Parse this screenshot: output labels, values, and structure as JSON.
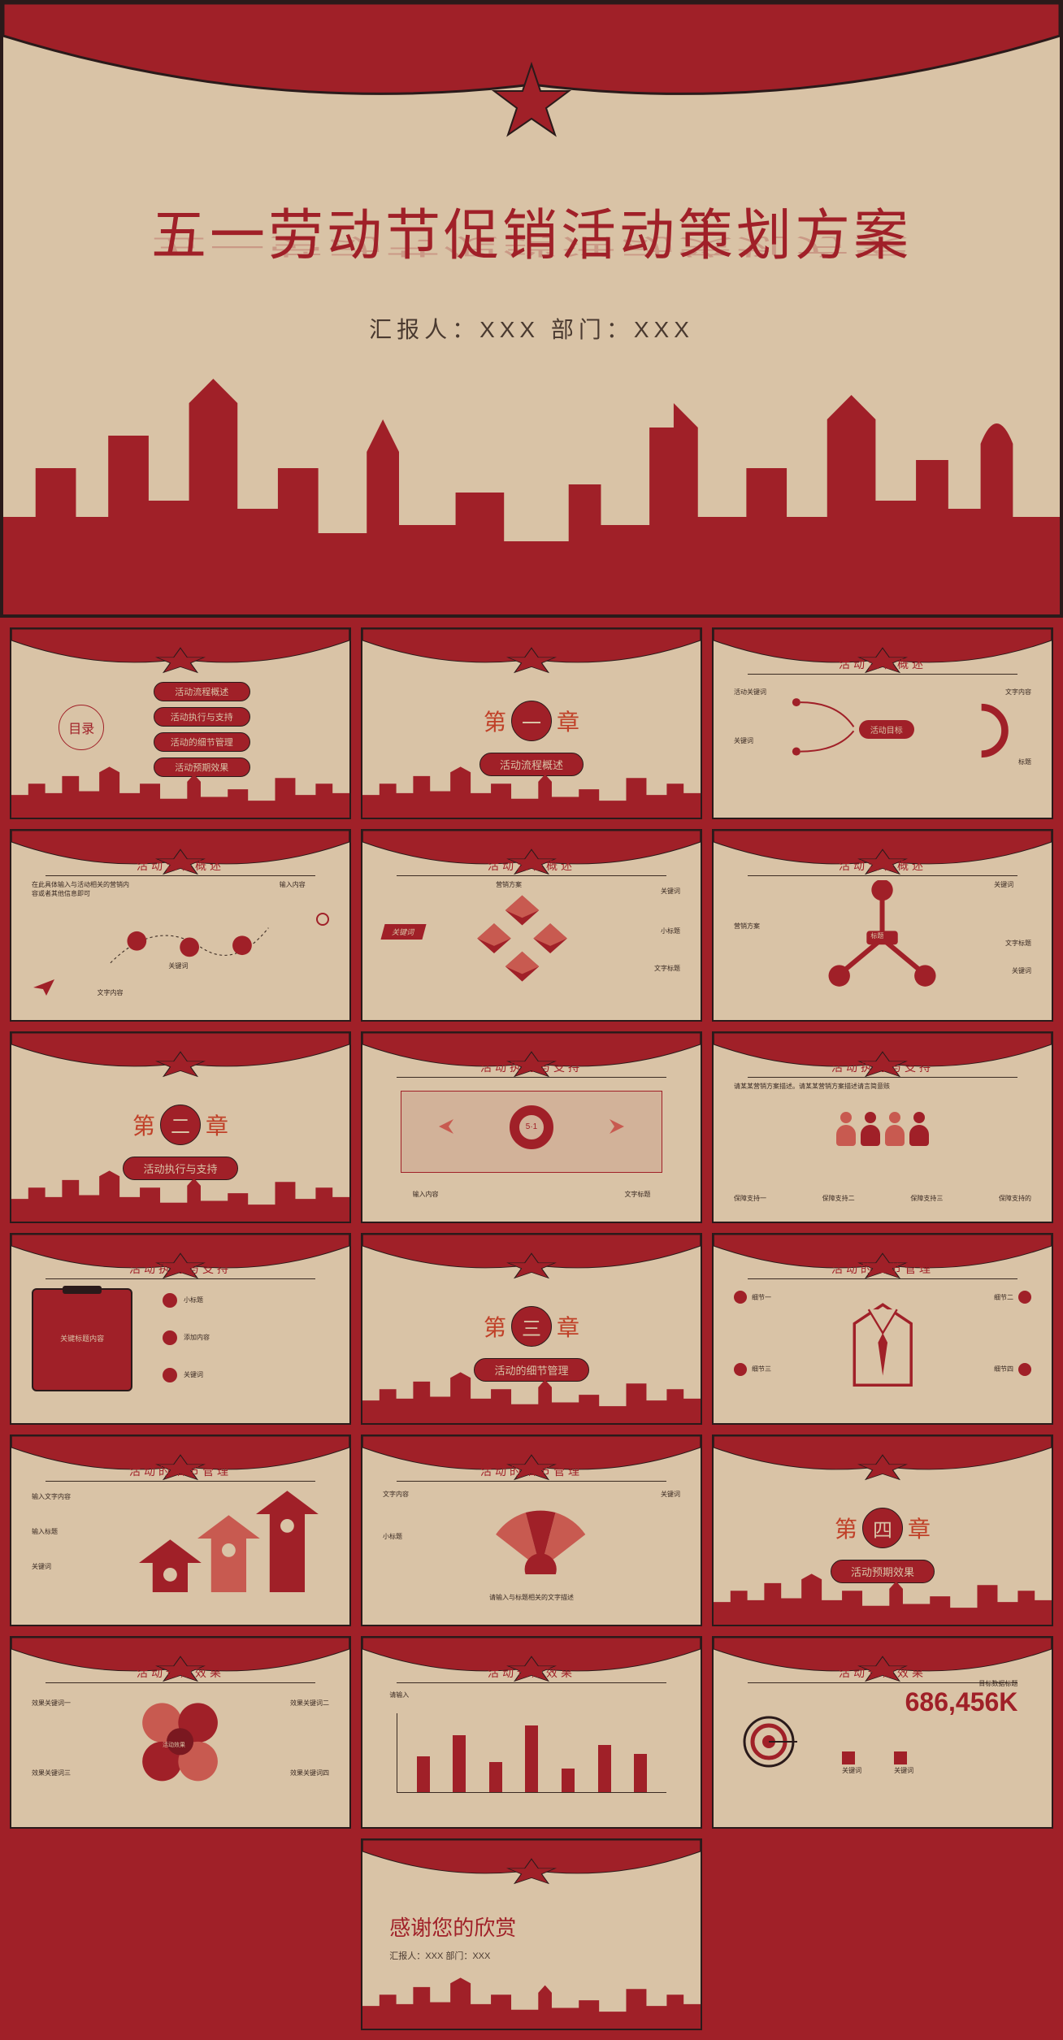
{
  "colors": {
    "primary_red": "#a02028",
    "light_red": "#c85a50",
    "beige": "#d9c3a6",
    "dark": "#2a1a1a",
    "text_dark": "#4a3a30"
  },
  "main": {
    "title": "五一劳动节促销活动策划方案",
    "subtitle": "汇报人：XXX  部门：XXX"
  },
  "toc": {
    "label": "目录",
    "items": [
      "活动流程概述",
      "活动执行与支持",
      "活动的细节管理",
      "活动预期效果"
    ]
  },
  "chapters": [
    {
      "prefix": "第",
      "num": "一",
      "suffix": "章",
      "subtitle": "活动流程概述"
    },
    {
      "prefix": "第",
      "num": "二",
      "suffix": "章",
      "subtitle": "活动执行与支持"
    },
    {
      "prefix": "第",
      "num": "三",
      "suffix": "章",
      "subtitle": "活动的细节管理"
    },
    {
      "prefix": "第",
      "num": "四",
      "suffix": "章",
      "subtitle": "活动预期效果"
    }
  ],
  "section_titles": {
    "flow": "活动流程概述",
    "exec": "活动执行与支持",
    "detail": "活动的细节管理",
    "expect": "活动预期效果"
  },
  "slide3": {
    "left_top": "活动关键词",
    "left_bottom": "关键词",
    "center": "活动目标",
    "right_top": "文字内容",
    "right_bottom": "标题"
  },
  "slide4": {
    "left_note": "在此具体输入与活动相关的营销内容或者其他信息即可",
    "n1": "文字内容",
    "n2": "关键词",
    "n3": "输入内容"
  },
  "slide5": {
    "center": "营销方案",
    "left": "关键词",
    "r1": "关键词",
    "r2": "小标题",
    "r3": "文字标题"
  },
  "slide6": {
    "top": "关键词",
    "left": "营销方案",
    "right": "标题",
    "b1": "文字标题",
    "b2": "关键词"
  },
  "slide8": {
    "center": "5·1",
    "l": "输入内容",
    "r": "文字标题"
  },
  "slide9": {
    "note": "请某某营销方案描述。请某某营销方案描述请言简意赅",
    "p": [
      "保障支持一",
      "保障支持二",
      "保障支持三",
      "保障支持的"
    ]
  },
  "slide10": {
    "box": "关键标题内容",
    "i1": "小标题",
    "i2": "添加内容",
    "i3": "关键词"
  },
  "slide12": {
    "i": [
      "细节一",
      "细节二",
      "细节三",
      "细节四"
    ]
  },
  "slide13": {
    "l1": "输入文字内容",
    "l2": "输入标题",
    "l3": "关键词"
  },
  "slide14": {
    "top": "文字内容",
    "mid": "小标题",
    "r": "关键词",
    "foot": "请输入与标题相关的文字描述"
  },
  "slide16": {
    "i": [
      "效果关键词一",
      "效果关键词二",
      "效果关键词三",
      "效果关键词四"
    ],
    "center": "活动效果"
  },
  "slide17": {
    "bars": [
      45,
      72,
      38,
      85,
      30,
      60,
      48
    ],
    "label": "请输入"
  },
  "slide18": {
    "big": "686,456K",
    "sub": "目标数据标题",
    "l1": "关键词",
    "l2": "关键词"
  },
  "thanks": {
    "title": "感谢您的欣赏",
    "sub": "汇报人：XXX  部门：XXX"
  }
}
